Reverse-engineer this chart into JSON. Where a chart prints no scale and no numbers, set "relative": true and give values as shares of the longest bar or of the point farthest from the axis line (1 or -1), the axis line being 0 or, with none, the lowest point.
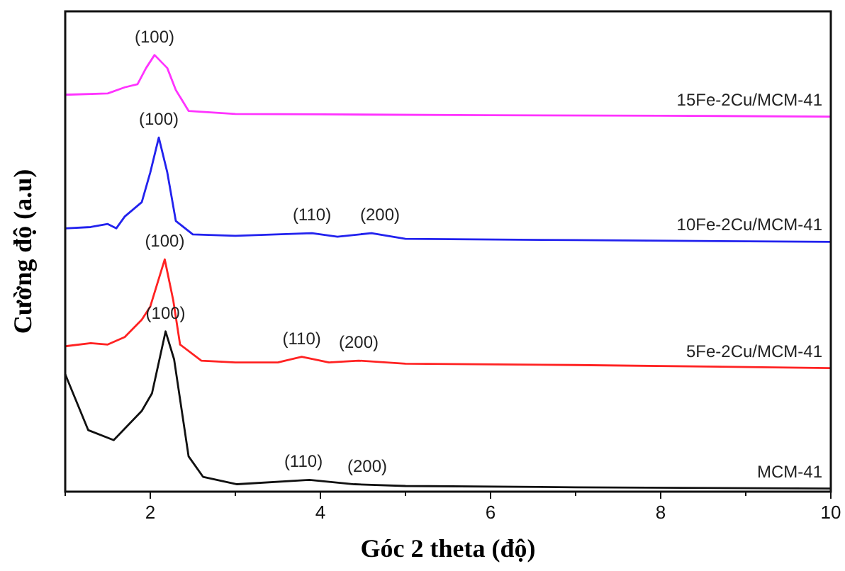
{
  "chart_data": {
    "type": "line",
    "relative": true,
    "xlabel": "Góc 2 theta (độ)",
    "ylabel": "Cường độ (a.u)",
    "xlim": [
      1,
      10
    ],
    "xticks": [
      {
        "value": 1,
        "label": null
      },
      2,
      {
        "value": 3,
        "label": null
      },
      4,
      {
        "value": 5,
        "label": null
      },
      6,
      {
        "value": 7,
        "label": null
      },
      8,
      {
        "value": 9,
        "label": null
      },
      10
    ],
    "grid": false,
    "marker": "none",
    "line_style": "solid",
    "series": [
      {
        "name": "15Fe-2Cu/MCM-41",
        "color": "#ff33ff",
        "x": [
          1,
          1.5,
          1.7,
          1.85,
          1.95,
          2.05,
          2.2,
          2.3,
          2.45,
          3,
          4,
          6,
          8,
          10
        ],
        "values": [
          0.909,
          0.912,
          0.926,
          0.933,
          0.97,
          1.0,
          0.97,
          0.92,
          0.872,
          0.865,
          0.864,
          0.862,
          0.861,
          0.859
        ]
      },
      {
        "name": "10Fe-2Cu/MCM-41",
        "color": "#2222ee",
        "x": [
          1,
          1.3,
          1.5,
          1.6,
          1.7,
          1.9,
          2.0,
          2.1,
          2.2,
          2.3,
          2.5,
          3,
          3.9,
          4.2,
          4.6,
          5,
          7,
          10
        ],
        "values": [
          0.603,
          0.606,
          0.613,
          0.603,
          0.63,
          0.663,
          0.731,
          0.811,
          0.731,
          0.62,
          0.589,
          0.586,
          0.592,
          0.584,
          0.592,
          0.579,
          0.576,
          0.572
        ]
      },
      {
        "name": "5Fe-2Cu/MCM-41",
        "color": "#ff2222",
        "x": [
          1,
          1.3,
          1.5,
          1.7,
          1.9,
          2.0,
          2.17,
          2.27,
          2.35,
          2.6,
          3,
          3.5,
          3.78,
          4.1,
          4.45,
          5,
          7,
          10
        ],
        "values": [
          0.333,
          0.34,
          0.337,
          0.354,
          0.394,
          0.424,
          0.532,
          0.438,
          0.337,
          0.3,
          0.296,
          0.296,
          0.309,
          0.296,
          0.3,
          0.293,
          0.29,
          0.283
        ]
      },
      {
        "name": "MCM-41",
        "color": "#111111",
        "x": [
          1,
          1.27,
          1.57,
          1.9,
          2.02,
          2.18,
          2.28,
          2.45,
          2.62,
          3.02,
          3.87,
          4.4,
          5,
          7,
          10
        ],
        "values": [
          0.269,
          0.141,
          0.118,
          0.185,
          0.225,
          0.367,
          0.303,
          0.081,
          0.034,
          0.017,
          0.027,
          0.017,
          0.013,
          0.01,
          0.007
        ]
      }
    ],
    "annotations": [
      {
        "text": "(100)",
        "x": 2.05,
        "y": 1.0
      },
      {
        "text": "(100)",
        "x": 2.1,
        "y": 0.811
      },
      {
        "text": "(110)",
        "x": 3.9,
        "y": 0.592
      },
      {
        "text": "(200)",
        "x": 4.7,
        "y": 0.592
      },
      {
        "text": "(100)",
        "x": 2.17,
        "y": 0.532
      },
      {
        "text": "(110)",
        "x": 3.78,
        "y": 0.309
      },
      {
        "text": "(200)",
        "x": 4.45,
        "y": 0.3
      },
      {
        "text": "(100)",
        "x": 2.18,
        "y": 0.367
      },
      {
        "text": "(110)",
        "x": 3.8,
        "y": 0.027
      },
      {
        "text": "(200)",
        "x": 4.55,
        "y": 0.017
      }
    ]
  }
}
